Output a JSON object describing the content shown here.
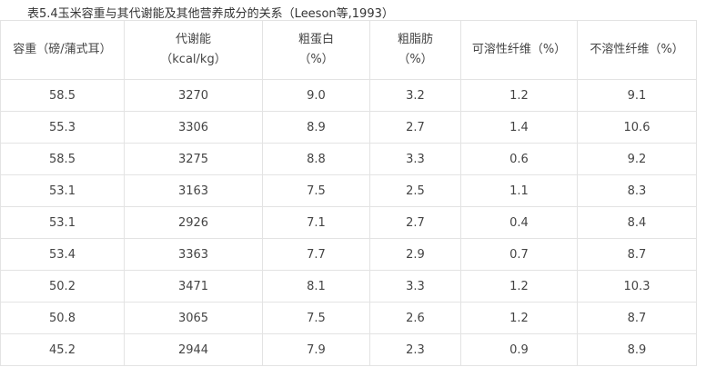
{
  "caption": "表5.4玉米容重与其代谢能及其他营养成分的关系（Leeson等,1993）",
  "columns": [
    {
      "line1": "容重（磅/蒲式耳）",
      "line2": ""
    },
    {
      "line1": "代谢能",
      "line2": "（kcal/kg）"
    },
    {
      "line1": "粗蛋白",
      "line2": "（%）"
    },
    {
      "line1": "粗脂肪",
      "line2": "（%）"
    },
    {
      "line1": "可溶性纤维（%）",
      "line2": ""
    },
    {
      "line1": "不溶性纤维（%）",
      "line2": ""
    }
  ],
  "rows": [
    [
      "58.5",
      "3270",
      "9.0",
      "3.2",
      "1.2",
      "9.1"
    ],
    [
      "55.3",
      "3306",
      "8.9",
      "2.7",
      "1.4",
      "10.6"
    ],
    [
      "58.5",
      "3275",
      "8.8",
      "3.3",
      "0.6",
      "9.2"
    ],
    [
      "53.1",
      "3163",
      "7.5",
      "2.5",
      "1.1",
      "8.3"
    ],
    [
      "53.1",
      "2926",
      "7.1",
      "2.7",
      "0.4",
      "8.4"
    ],
    [
      "53.4",
      "3363",
      "7.7",
      "2.9",
      "0.7",
      "8.7"
    ],
    [
      "50.2",
      "3471",
      "8.1",
      "3.3",
      "1.2",
      "10.3"
    ],
    [
      "50.8",
      "3065",
      "7.5",
      "2.6",
      "1.2",
      "8.7"
    ],
    [
      "45.2",
      "2944",
      "7.9",
      "2.3",
      "0.9",
      "8.9"
    ]
  ]
}
